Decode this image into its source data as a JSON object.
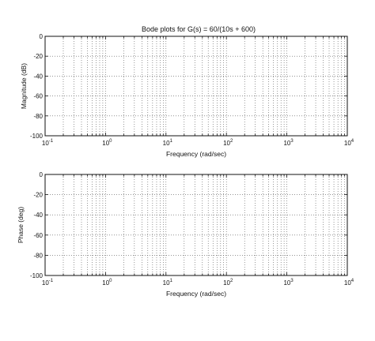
{
  "chart_data": [
    {
      "type": "line",
      "title": "Bode plots for G(s) = 60/(10s + 600)",
      "xlabel": "Frequency (rad/sec)",
      "ylabel": "Magnitude (dB)",
      "xscale": "log",
      "xlim": [
        0.1,
        10000
      ],
      "ylim": [
        -100,
        0
      ],
      "x_ticks": [
        {
          "base": "10",
          "exp": "-1"
        },
        {
          "base": "10",
          "exp": "0"
        },
        {
          "base": "10",
          "exp": "1"
        },
        {
          "base": "10",
          "exp": "2"
        },
        {
          "base": "10",
          "exp": "3"
        },
        {
          "base": "10",
          "exp": "4"
        }
      ],
      "y_ticks": [
        "0",
        "-20",
        "-40",
        "-60",
        "-80",
        "-100"
      ],
      "grid": true,
      "series": []
    },
    {
      "type": "line",
      "title": "",
      "xlabel": "Frequency (rad/sec)",
      "ylabel": "Phase (deg)",
      "xscale": "log",
      "xlim": [
        0.1,
        10000
      ],
      "ylim": [
        -100,
        0
      ],
      "x_ticks": [
        {
          "base": "10",
          "exp": "-1"
        },
        {
          "base": "10",
          "exp": "0"
        },
        {
          "base": "10",
          "exp": "1"
        },
        {
          "base": "10",
          "exp": "2"
        },
        {
          "base": "10",
          "exp": "3"
        },
        {
          "base": "10",
          "exp": "4"
        }
      ],
      "y_ticks": [
        "0",
        "-20",
        "-40",
        "-60",
        "-80",
        "-100"
      ],
      "grid": true,
      "series": []
    }
  ]
}
